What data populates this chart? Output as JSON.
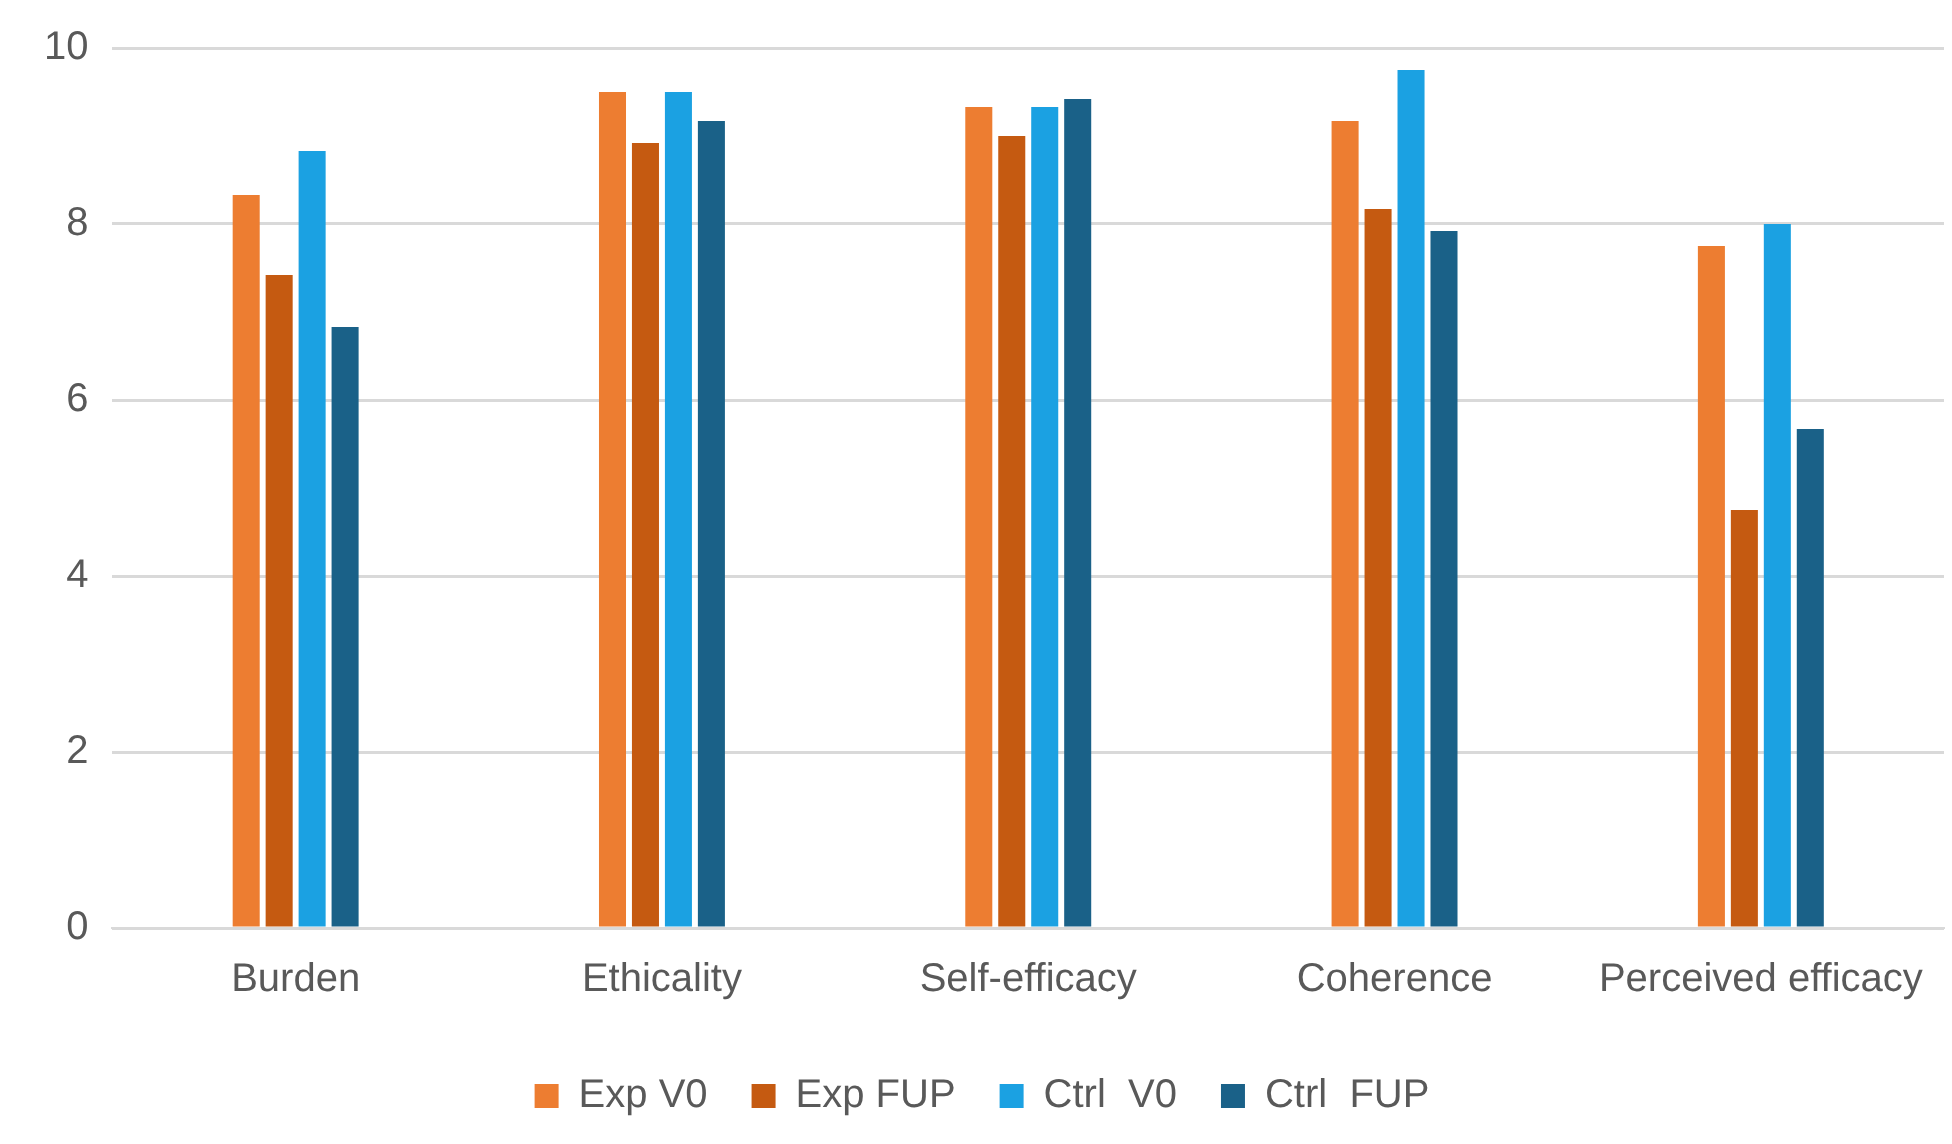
{
  "chart_data": {
    "type": "bar",
    "categories": [
      "Burden",
      "Ethicality",
      "Self-efficacy",
      "Coherence",
      "Perceived efficacy"
    ],
    "series": [
      {
        "name": "Exp V0",
        "color": "#ed7d31",
        "values": [
          8.33,
          9.5,
          9.33,
          9.17,
          7.75
        ]
      },
      {
        "name": "Exp FUP",
        "color": "#c55a11",
        "values": [
          7.42,
          8.92,
          9.0,
          8.17,
          4.75
        ]
      },
      {
        "name": "Ctrl  V0",
        "color": "#1ba1e2",
        "values": [
          8.83,
          9.5,
          9.33,
          9.75,
          8.0
        ]
      },
      {
        "name": "Ctrl  FUP",
        "color": "#1a6188",
        "values": [
          6.83,
          9.17,
          9.42,
          7.92,
          5.67
        ]
      }
    ],
    "ylim": [
      0,
      10
    ],
    "yticks": [
      0,
      2,
      4,
      6,
      8,
      10
    ],
    "grid": "y",
    "legend": "bottom"
  }
}
